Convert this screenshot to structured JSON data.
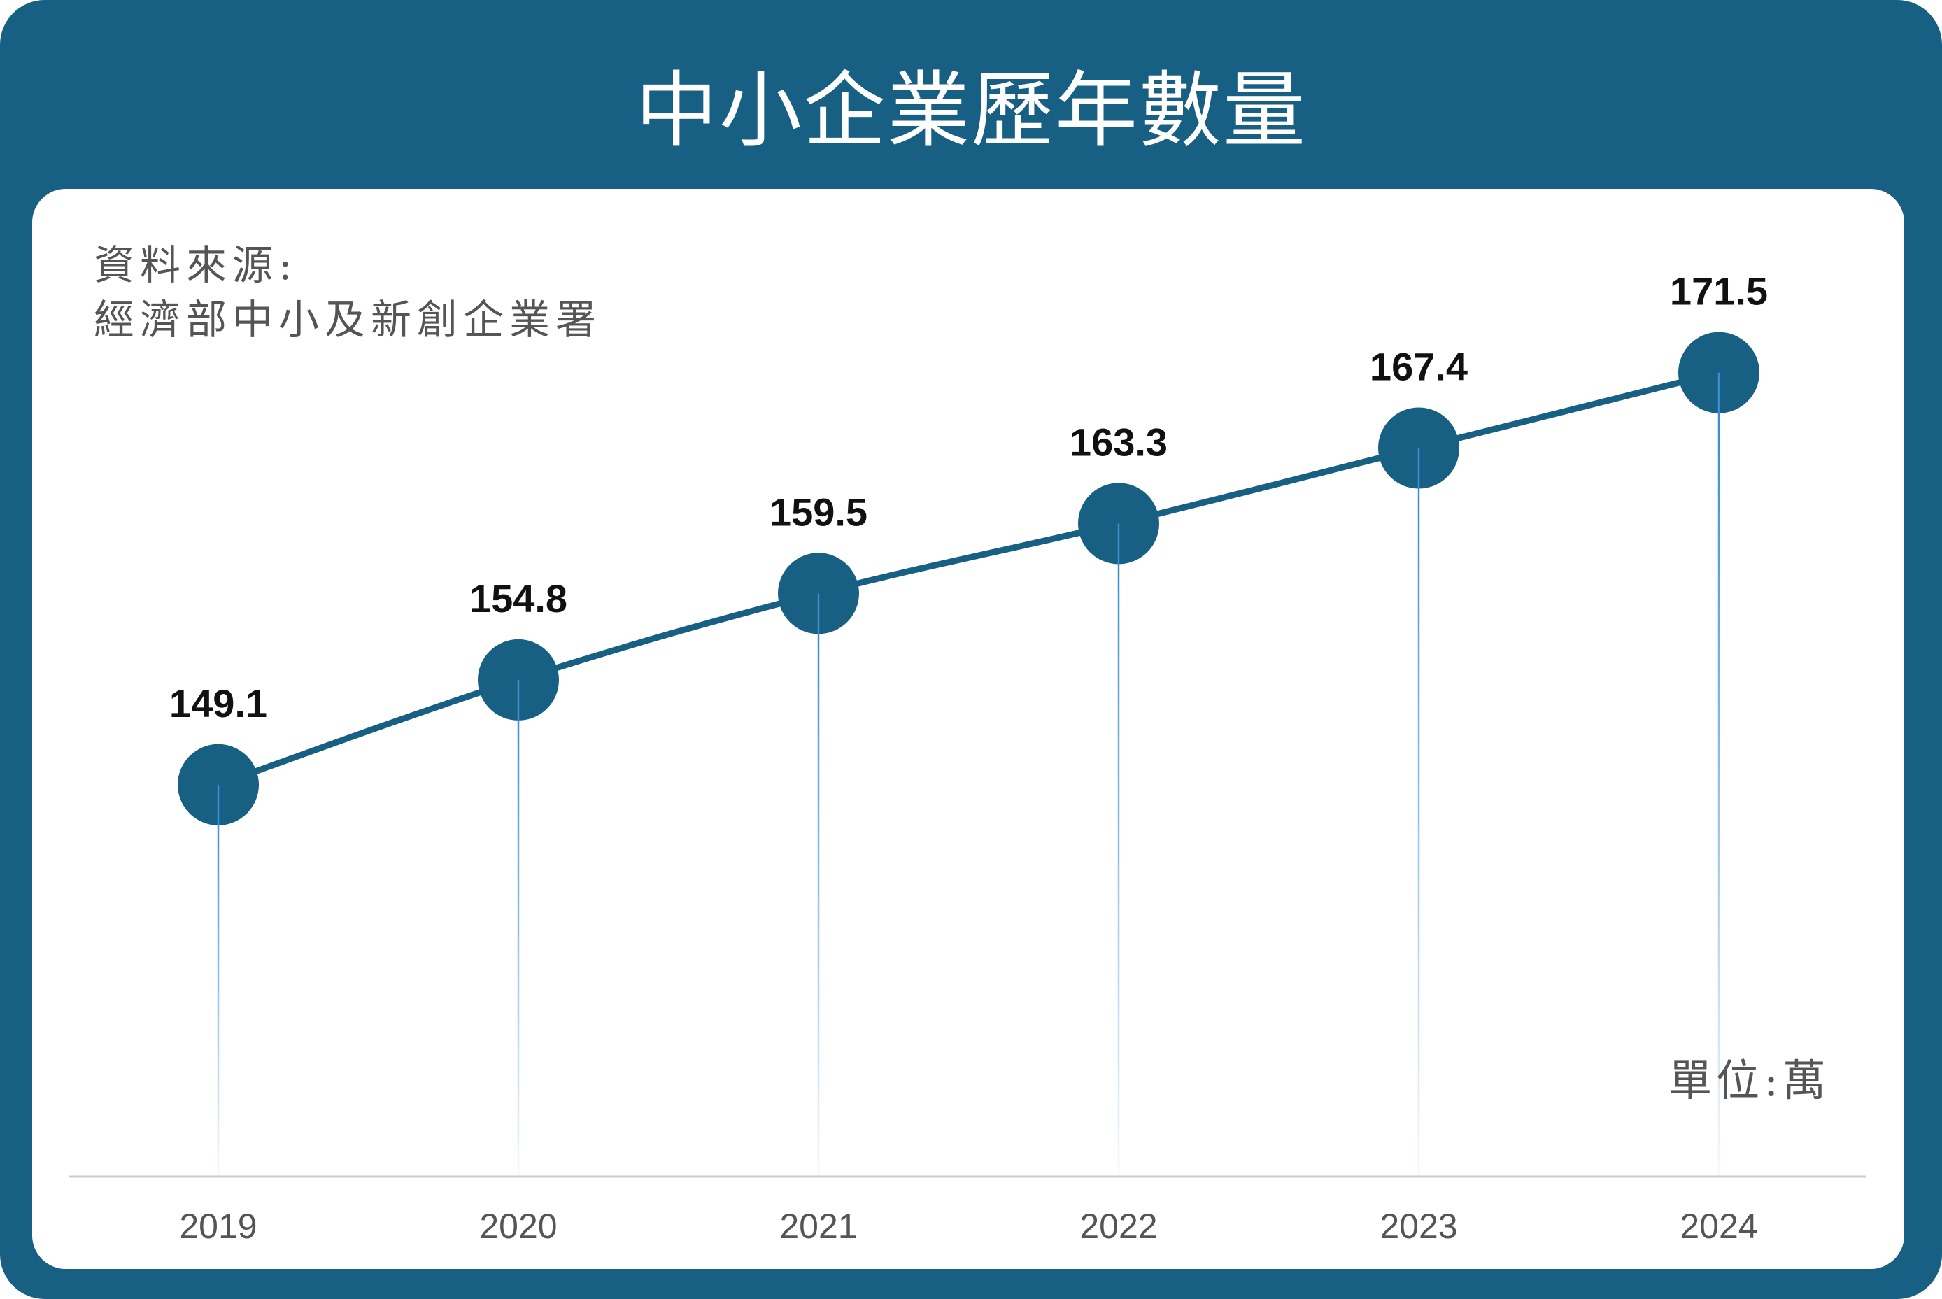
{
  "title": "中小企業歷年數量",
  "source": {
    "line1": "資料來源:",
    "line2": "經濟部中小及新創企業署"
  },
  "unit_label": "單位:萬",
  "colors": {
    "background": "#175f83",
    "panel": "#ffffff",
    "line": "#175f83",
    "marker": "#175f83",
    "drop_line": "#3a8fd0",
    "axis": "#cccccc"
  },
  "chart_data": {
    "type": "line",
    "categories": [
      "2019",
      "2020",
      "2021",
      "2022",
      "2023",
      "2024"
    ],
    "values": [
      149.1,
      154.8,
      159.5,
      163.3,
      167.4,
      171.5
    ],
    "data_labels": [
      "149.1",
      "154.8",
      "159.5",
      "163.3",
      "167.4",
      "171.5"
    ],
    "title": "中小企業歷年數量",
    "xlabel": "",
    "ylabel": "",
    "unit": "萬",
    "ylim": [
      127.8,
      177.6
    ],
    "grid": false,
    "legend": "none",
    "markers": "large circles",
    "drop_lines": true
  }
}
